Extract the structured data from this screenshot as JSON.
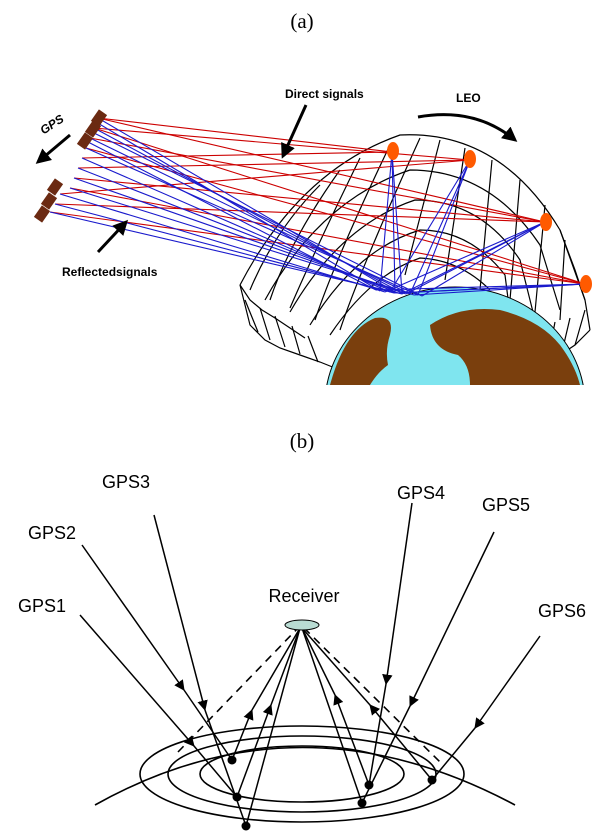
{
  "panel_a": {
    "label": "(a)",
    "gps_label": "GPS",
    "direct_label": "Direct signals",
    "leo_label": "LEO",
    "reflected_label": "Reflectedsignals",
    "colors": {
      "direct": "#cc0000",
      "reflected": "#1a1acc",
      "leo_satellite": "#ff5a00",
      "gps_satellite": "#6b2a12",
      "ocean": "#7fe5ef",
      "land": "#7a3f0d",
      "grid": "#000000"
    }
  },
  "panel_b": {
    "label": "(b)",
    "receiver_label": "Receiver",
    "satellites": [
      "GPS1",
      "GPS2",
      "GPS3",
      "GPS4",
      "GPS5",
      "GPS6"
    ],
    "colors": {
      "lines": "#000000",
      "receiver": "#b9dcd3"
    }
  }
}
